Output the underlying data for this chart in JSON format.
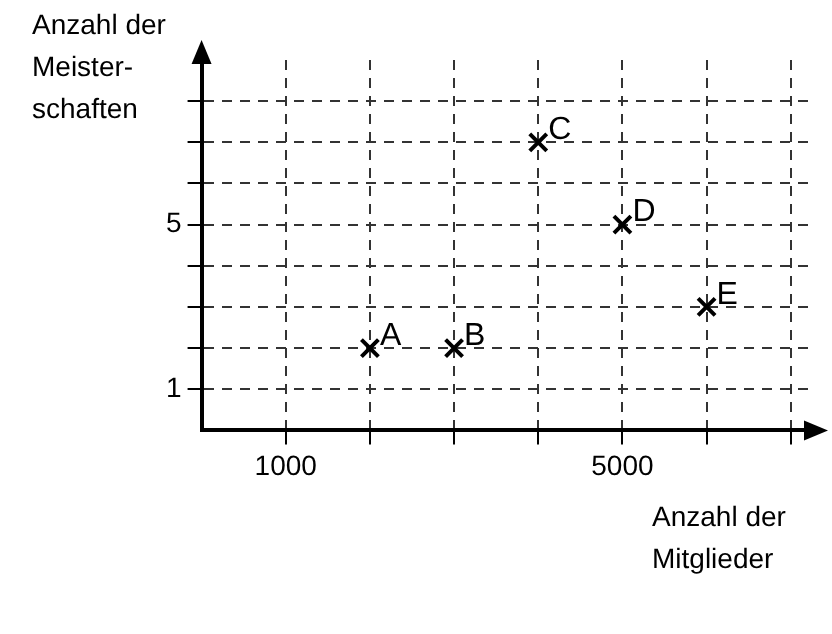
{
  "chart_data": {
    "type": "scatter",
    "xlabel": "Anzahl der Mitglieder",
    "ylabel": "Anzahl der Meister-schaften",
    "x": [
      2000,
      3000,
      4000,
      5000,
      6000
    ],
    "values": [
      2,
      2,
      7,
      5,
      3
    ],
    "color": "#000000",
    "marker": "cross",
    "xlim": [
      0,
      7300
    ],
    "ylim": [
      0,
      9
    ],
    "xticks": [
      {
        "value": 1000,
        "label": "1000"
      },
      {
        "value": 2000,
        "label": null
      },
      {
        "value": 3000,
        "label": null
      },
      {
        "value": 4000,
        "label": null
      },
      {
        "value": 5000,
        "label": "5000"
      },
      {
        "value": 6000,
        "label": null
      },
      {
        "value": 7000,
        "label": null
      }
    ],
    "yticks": [
      {
        "value": 1,
        "label": "1"
      },
      {
        "value": 2,
        "label": null
      },
      {
        "value": 3,
        "label": null
      },
      {
        "value": 4,
        "label": null
      },
      {
        "value": 5,
        "label": "5"
      },
      {
        "value": 6,
        "label": null
      },
      {
        "value": 7,
        "label": null
      },
      {
        "value": 8,
        "label": null
      }
    ],
    "grid": true,
    "line_style": "dashed",
    "annotations": [
      {
        "text": "A",
        "x": 2000,
        "y": 2
      },
      {
        "text": "B",
        "x": 3000,
        "y": 2
      },
      {
        "text": "C",
        "x": 4000,
        "y": 7
      },
      {
        "text": "D",
        "x": 5000,
        "y": 5
      },
      {
        "text": "E",
        "x": 6000,
        "y": 3
      }
    ]
  }
}
